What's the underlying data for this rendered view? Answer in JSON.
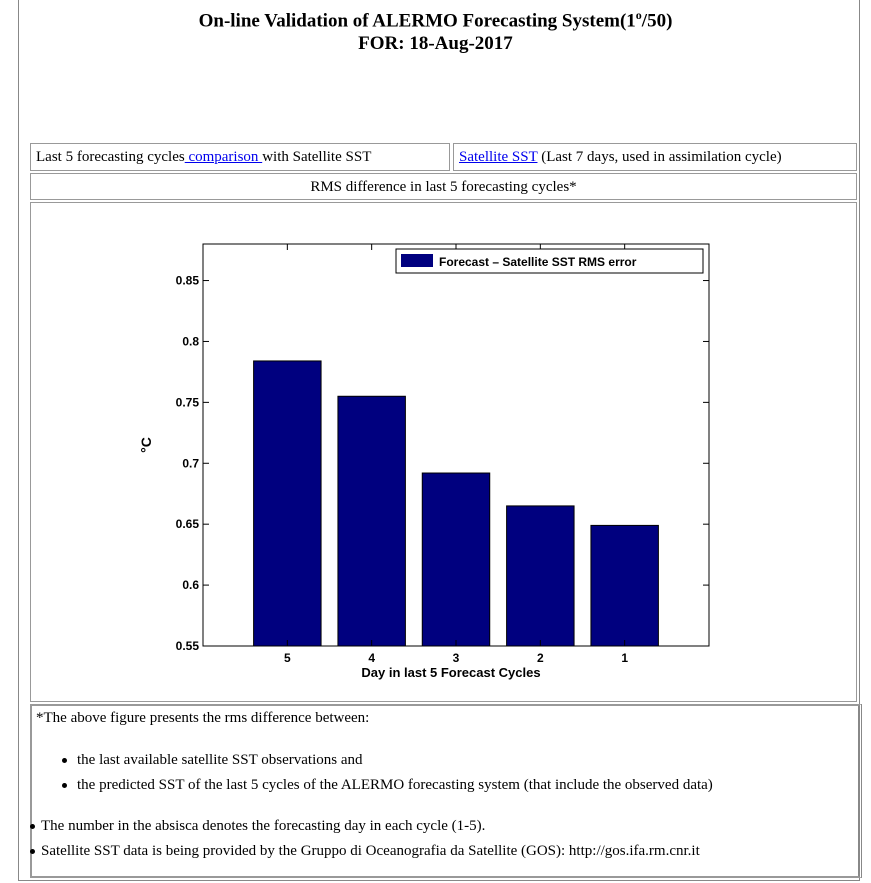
{
  "header": {
    "title_main": "On-line Validation of ALERMO Forecasting System(1",
    "title_sup": "o",
    "title_tail": "/50)",
    "date_line": "FOR: 18-Aug-2017"
  },
  "nav": {
    "cell1_prefix": "Last 5 forecasting cycles",
    "cell1_link": " comparison ",
    "cell1_suffix": "with Satellite SST",
    "cell2_link": "Satellite SST",
    "cell2_suffix": " (Last 7 days, used in assimilation cycle)"
  },
  "section_title": "RMS difference in last 5 forecasting cycles*",
  "chart_data": {
    "type": "bar",
    "categories": [
      "5",
      "4",
      "3",
      "2",
      "1"
    ],
    "series": [
      {
        "name": "Forecast – Satellite SST RMS error",
        "values": [
          0.784,
          0.755,
          0.692,
          0.665,
          0.649
        ],
        "color": "#00007f"
      }
    ],
    "ylabel": "°C",
    "xlabel": "Day in last 5 Forecast Cycles",
    "ylim": [
      0.55,
      0.88
    ],
    "yticks": [
      "0.55",
      "0.6",
      "0.65",
      "0.7",
      "0.75",
      "0.8",
      "0.85"
    ],
    "legend": "top-right"
  },
  "notes": {
    "intro": "*The above figure presents the rms difference between:",
    "items": [
      "the last available satellite SST observations and",
      "the predicted SST of the last 5 cycles of the ALERMO forecasting system (that include the observed data)"
    ],
    "line1": "The number in the absisca denotes the forecasting day in each cycle (1-5).",
    "line2": "Satellite SST data is being provided by the Gruppo di Oceanografia da Satellite (GOS): http://gos.ifa.rm.cnr.it"
  }
}
